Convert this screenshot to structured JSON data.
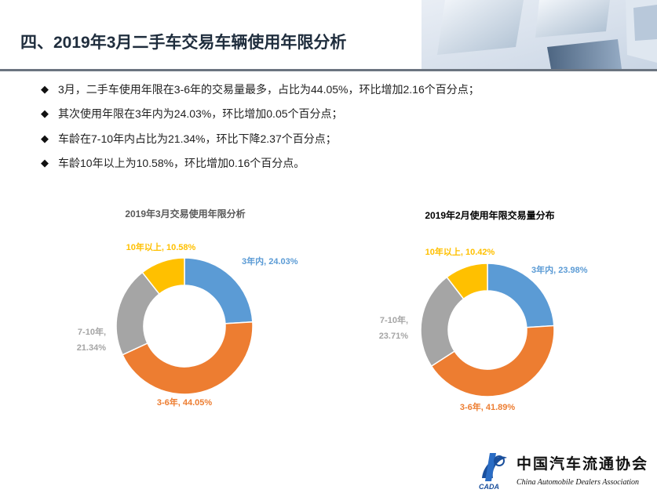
{
  "page": {
    "title": "四、2019年3月二手车交易车辆使用年限分析",
    "bullets": [
      "3月，二手车使用年限在3-6年的交易量最多，占比为44.05%，环比增加2.16个百分点；",
      "其次使用年限在3年内为24.03%，环比增加0.05个百分点；",
      "车龄在7-10年内占比为21.34%，环比下降2.37个百分点；",
      "车龄10年以上为10.58%，环比增加0.16个百分点。"
    ],
    "bullet_icon": "diamond-bullet-icon"
  },
  "chart_data": [
    {
      "type": "pie",
      "title": "2019年3月交易使用年限分析",
      "categories": [
        "3年内",
        "3-6年",
        "7-10年",
        "10年以上"
      ],
      "values": [
        24.03,
        44.05,
        21.34,
        10.58
      ],
      "labels": [
        "3年内, 24.03%",
        "3-6年, 44.05%",
        "7-10年,",
        "10年以上, 10.58%"
      ],
      "label_extra": [
        "",
        "",
        "21.34%",
        ""
      ],
      "colors": [
        "#5b9bd5",
        "#ed7d31",
        "#a5a5a5",
        "#ffc000"
      ],
      "donut": true
    },
    {
      "type": "pie",
      "title": "2019年2月使用年限交易量分布",
      "categories": [
        "3年内",
        "3-6年",
        "7-10年",
        "10年以上"
      ],
      "values": [
        23.98,
        41.89,
        23.71,
        10.42
      ],
      "labels": [
        "3年内, 23.98%",
        "3-6年, 41.89%",
        "7-10年,",
        "10年以上, 10.42%"
      ],
      "label_extra": [
        "",
        "",
        "23.71%",
        ""
      ],
      "colors": [
        "#5b9bd5",
        "#ed7d31",
        "#a5a5a5",
        "#ffc000"
      ],
      "donut": true
    }
  ],
  "logo": {
    "name_cn": "中国汽车流通协会",
    "name_en": "China Automobile Dealers Association",
    "abbr": "CADA"
  }
}
